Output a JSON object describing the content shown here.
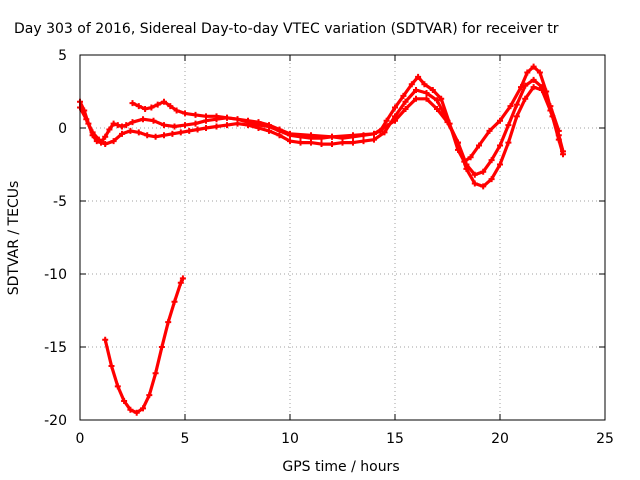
{
  "chart_data": {
    "type": "scatter",
    "title": "Day 303 of 2016, Sidereal Day-to-day VTEC variation (SDTVAR) for receiver tr",
    "xlabel": "GPS time / hours",
    "ylabel": "SDTVAR / TECUs",
    "xlim": [
      0,
      25
    ],
    "ylim": [
      -20,
      5
    ],
    "xticks": [
      0,
      5,
      10,
      15,
      20,
      25
    ],
    "yticks": [
      5,
      0,
      -5,
      -10,
      -15,
      -20
    ],
    "grid": true,
    "legend": false,
    "marker": "plus",
    "color": "#ff0000",
    "series": [
      {
        "x": [
          0.0,
          0.2,
          0.4,
          0.6,
          0.8,
          1.0,
          1.2,
          1.4,
          1.6,
          1.8,
          2.0,
          2.2,
          2.5,
          3.0,
          3.5,
          4.0,
          4.5,
          5.0,
          5.5,
          6.0,
          6.5,
          7.0,
          7.5,
          8.0,
          8.5,
          9.0,
          9.5,
          10.0,
          10.5,
          11.0,
          11.5,
          12.0,
          12.5,
          13.0,
          13.5,
          14.0,
          14.3,
          14.6,
          15.0,
          15.4,
          15.8,
          16.1,
          16.4,
          16.8,
          17.2,
          17.6,
          18.0,
          18.3,
          18.6,
          19.0,
          19.5,
          20.0,
          20.5,
          21.0,
          21.3,
          21.6,
          21.9,
          22.2,
          22.5,
          22.8,
          23.0
        ],
        "y": [
          1.8,
          1.2,
          0.3,
          -0.5,
          -0.9,
          -1.0,
          -0.6,
          -0.1,
          0.3,
          0.2,
          0.1,
          0.2,
          0.4,
          0.6,
          0.5,
          0.2,
          0.1,
          0.2,
          0.3,
          0.5,
          0.6,
          0.7,
          0.6,
          0.4,
          0.2,
          0.1,
          -0.2,
          -0.5,
          -0.6,
          -0.7,
          -0.7,
          -0.6,
          -0.7,
          -0.6,
          -0.5,
          -0.4,
          -0.2,
          0.5,
          1.4,
          2.2,
          3.0,
          3.5,
          3.0,
          2.6,
          2.0,
          0.3,
          -1.5,
          -2.3,
          -2.0,
          -1.2,
          -0.2,
          0.5,
          1.5,
          2.8,
          3.8,
          4.2,
          3.8,
          2.5,
          0.8,
          -0.8,
          -1.8
        ]
      },
      {
        "x": [
          0.0,
          0.3,
          0.6,
          0.9,
          1.2,
          1.6,
          2.0,
          2.4,
          2.8,
          3.2,
          3.6,
          4.0,
          4.4,
          4.8,
          5.2,
          5.6,
          6.0,
          6.5,
          7.0,
          7.5,
          8.0,
          8.5,
          9.0,
          9.5,
          10.0,
          10.5,
          11.0,
          11.5,
          12.0,
          12.5,
          13.0,
          13.5,
          14.0,
          14.5,
          15.0,
          15.5,
          16.0,
          16.5,
          17.0,
          17.5,
          18.0,
          18.4,
          18.8,
          19.2,
          19.6,
          20.0,
          20.4,
          20.8,
          21.2,
          21.6,
          22.0,
          22.4,
          22.8,
          23.0
        ],
        "y": [
          1.4,
          0.6,
          -0.3,
          -0.8,
          -1.1,
          -0.9,
          -0.4,
          -0.2,
          -0.3,
          -0.5,
          -0.6,
          -0.5,
          -0.4,
          -0.3,
          -0.2,
          -0.1,
          0.0,
          0.1,
          0.2,
          0.3,
          0.2,
          0.0,
          -0.2,
          -0.5,
          -0.9,
          -1.0,
          -1.0,
          -1.1,
          -1.1,
          -1.0,
          -1.0,
          -0.9,
          -0.8,
          -0.3,
          0.8,
          1.8,
          2.6,
          2.4,
          1.9,
          0.5,
          -1.0,
          -2.8,
          -3.8,
          -4.0,
          -3.5,
          -2.5,
          -1.0,
          0.8,
          2.0,
          2.8,
          2.6,
          1.2,
          -0.5,
          -1.6
        ]
      },
      {
        "x": [
          2.5,
          2.8,
          3.1,
          3.4,
          3.7,
          4.0,
          4.3,
          4.6,
          5.0,
          5.5,
          6.0,
          6.5,
          7.0,
          7.5,
          8.0,
          8.5,
          9.0,
          9.5,
          10.0,
          11.0,
          12.0,
          13.0,
          14.0,
          15.0,
          15.5,
          16.0,
          16.5,
          17.0,
          17.5,
          18.0,
          18.4,
          18.8,
          19.2,
          19.6,
          20.0,
          20.4,
          20.8,
          21.2,
          21.6,
          22.0,
          22.4,
          22.8
        ],
        "y": [
          1.7,
          1.5,
          1.3,
          1.4,
          1.6,
          1.8,
          1.5,
          1.2,
          1.0,
          0.9,
          0.8,
          0.8,
          0.7,
          0.6,
          0.5,
          0.4,
          0.2,
          -0.1,
          -0.4,
          -0.5,
          -0.6,
          -0.5,
          -0.4,
          0.5,
          1.3,
          2.0,
          2.0,
          1.3,
          0.4,
          -1.0,
          -2.5,
          -3.2,
          -3.0,
          -2.2,
          -1.2,
          0.2,
          1.6,
          2.9,
          3.3,
          2.8,
          1.5,
          -0.2
        ]
      },
      {
        "x": [
          1.2,
          1.5,
          1.8,
          2.1,
          2.4,
          2.7,
          3.0,
          3.3,
          3.6,
          3.9,
          4.2,
          4.5,
          4.8,
          4.9
        ],
        "y": [
          -14.5,
          -16.3,
          -17.7,
          -18.7,
          -19.3,
          -19.5,
          -19.2,
          -18.3,
          -16.8,
          -15.0,
          -13.3,
          -11.9,
          -10.6,
          -10.3
        ]
      }
    ]
  }
}
